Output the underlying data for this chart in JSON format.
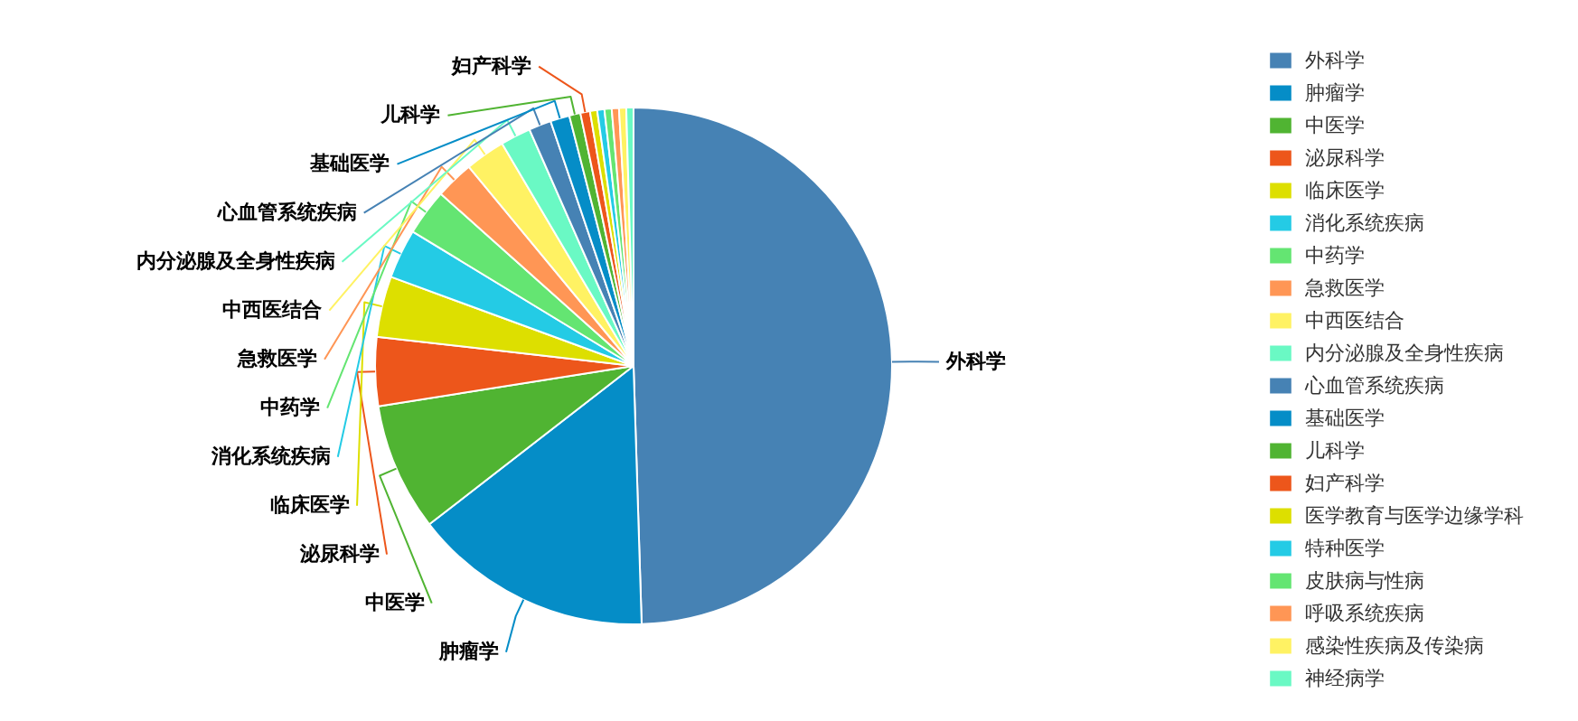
{
  "chart_data": {
    "type": "pie",
    "categories": [
      "外科学",
      "肿瘤学",
      "中医学",
      "泌尿科学",
      "临床医学",
      "消化系统疾病",
      "中药学",
      "急救医学",
      "中西医结合",
      "内分泌腺及全身性疾病",
      "心血管系统疾病",
      "基础医学",
      "儿科学",
      "妇产科学",
      "医学教育与医学边缘学科",
      "特种医学",
      "皮肤病与性病",
      "呼吸系统疾病",
      "感染性疾病及传染病",
      "神经病学"
    ],
    "values": [
      49.5,
      15.0,
      8.0,
      4.3,
      3.8,
      3.1,
      2.9,
      2.4,
      2.5,
      1.9,
      1.4,
      1.2,
      0.7,
      0.6,
      0.45,
      0.45,
      0.45,
      0.45,
      0.45,
      0.45
    ],
    "colors": [
      "#4682b4",
      "#058dc7",
      "#50b432",
      "#ed561b",
      "#dddf00",
      "#24cbe5",
      "#64e572",
      "#ff9655",
      "#fff263",
      "#6af9c4",
      "#4682b4",
      "#058dc7",
      "#50b432",
      "#ed561b",
      "#dddf00",
      "#24cbe5",
      "#64e572",
      "#ff9655",
      "#fff263",
      "#6af9c4"
    ],
    "legend": "right"
  }
}
